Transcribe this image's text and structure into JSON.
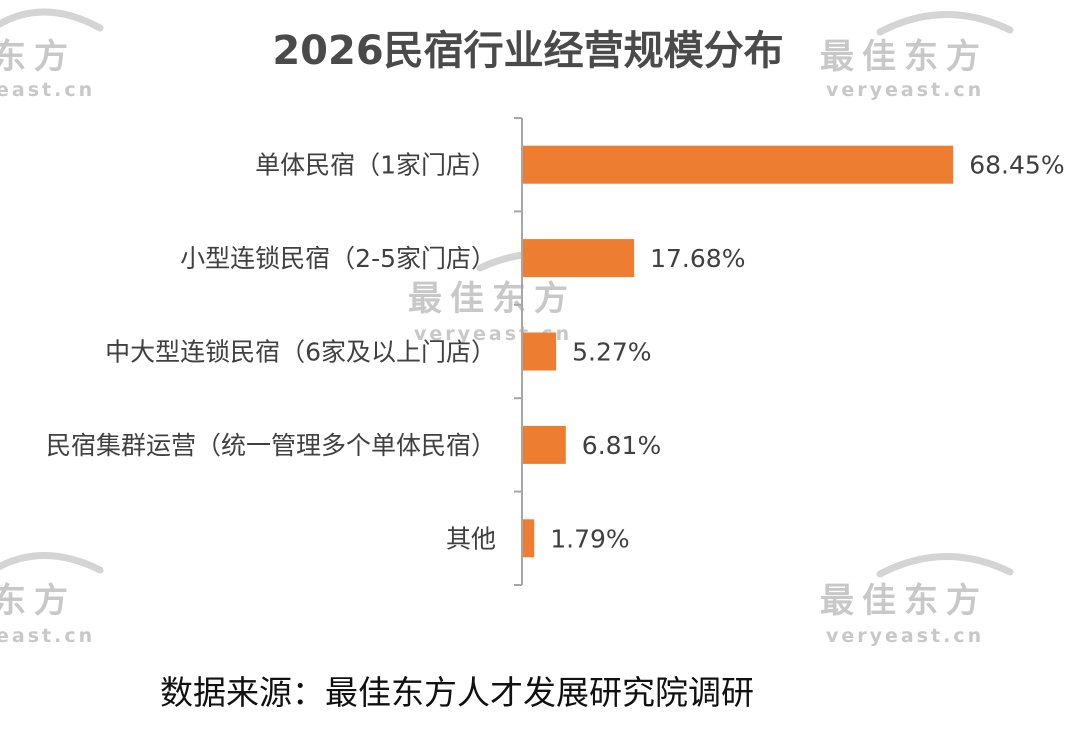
{
  "watermark": {
    "brand": "最佳东方",
    "brand_partial": "东方",
    "url": "veryeast.cn",
    "url_partial": "east.cn",
    "color": "#c8c8c8"
  },
  "source_text": "数据来源：最佳东方人才发展研究院调研",
  "chart_data": {
    "type": "bar",
    "orientation": "horizontal",
    "title": "2026民宿行业经营规模分布",
    "xlabel": "",
    "ylabel": "",
    "categories": [
      "单体民宿（1家门店）",
      "小型连锁民宿（2-5家门店）",
      "中大型连锁民宿（6家及以上门店）",
      "民宿集群运营（统一管理多个单体民宿）",
      "其他"
    ],
    "values": [
      68.45,
      17.68,
      5.27,
      6.81,
      1.79
    ],
    "value_labels": [
      "68.45%",
      "17.68%",
      "5.27%",
      "6.81%",
      "1.79%"
    ],
    "unit": "%",
    "xlim": [
      0,
      70
    ],
    "bar_color": "#ed7d31",
    "axis_color": "#a6a6a6",
    "grid": false,
    "legend": "none"
  }
}
